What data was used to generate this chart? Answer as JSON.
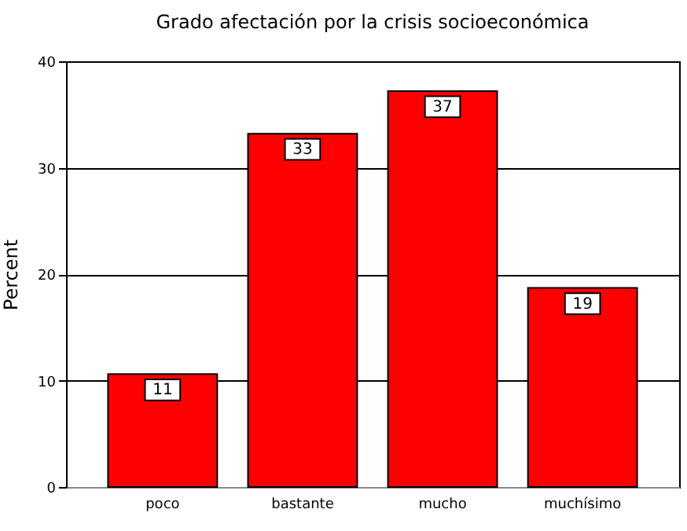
{
  "chart_data": {
    "type": "bar",
    "title": "Grado afectación por la crisis socioeconómica",
    "ylabel": "Percent",
    "categories": [
      "poco",
      "bastante",
      "mucho",
      "muchísimo"
    ],
    "values": [
      10.6,
      33.2,
      37.2,
      18.7
    ],
    "value_labels": [
      "11",
      "33",
      "37",
      "19"
    ],
    "color": "#ff0000",
    "ylim": [
      0,
      40
    ],
    "yticks": [
      0,
      10,
      20,
      30,
      40
    ],
    "grid": "y"
  }
}
